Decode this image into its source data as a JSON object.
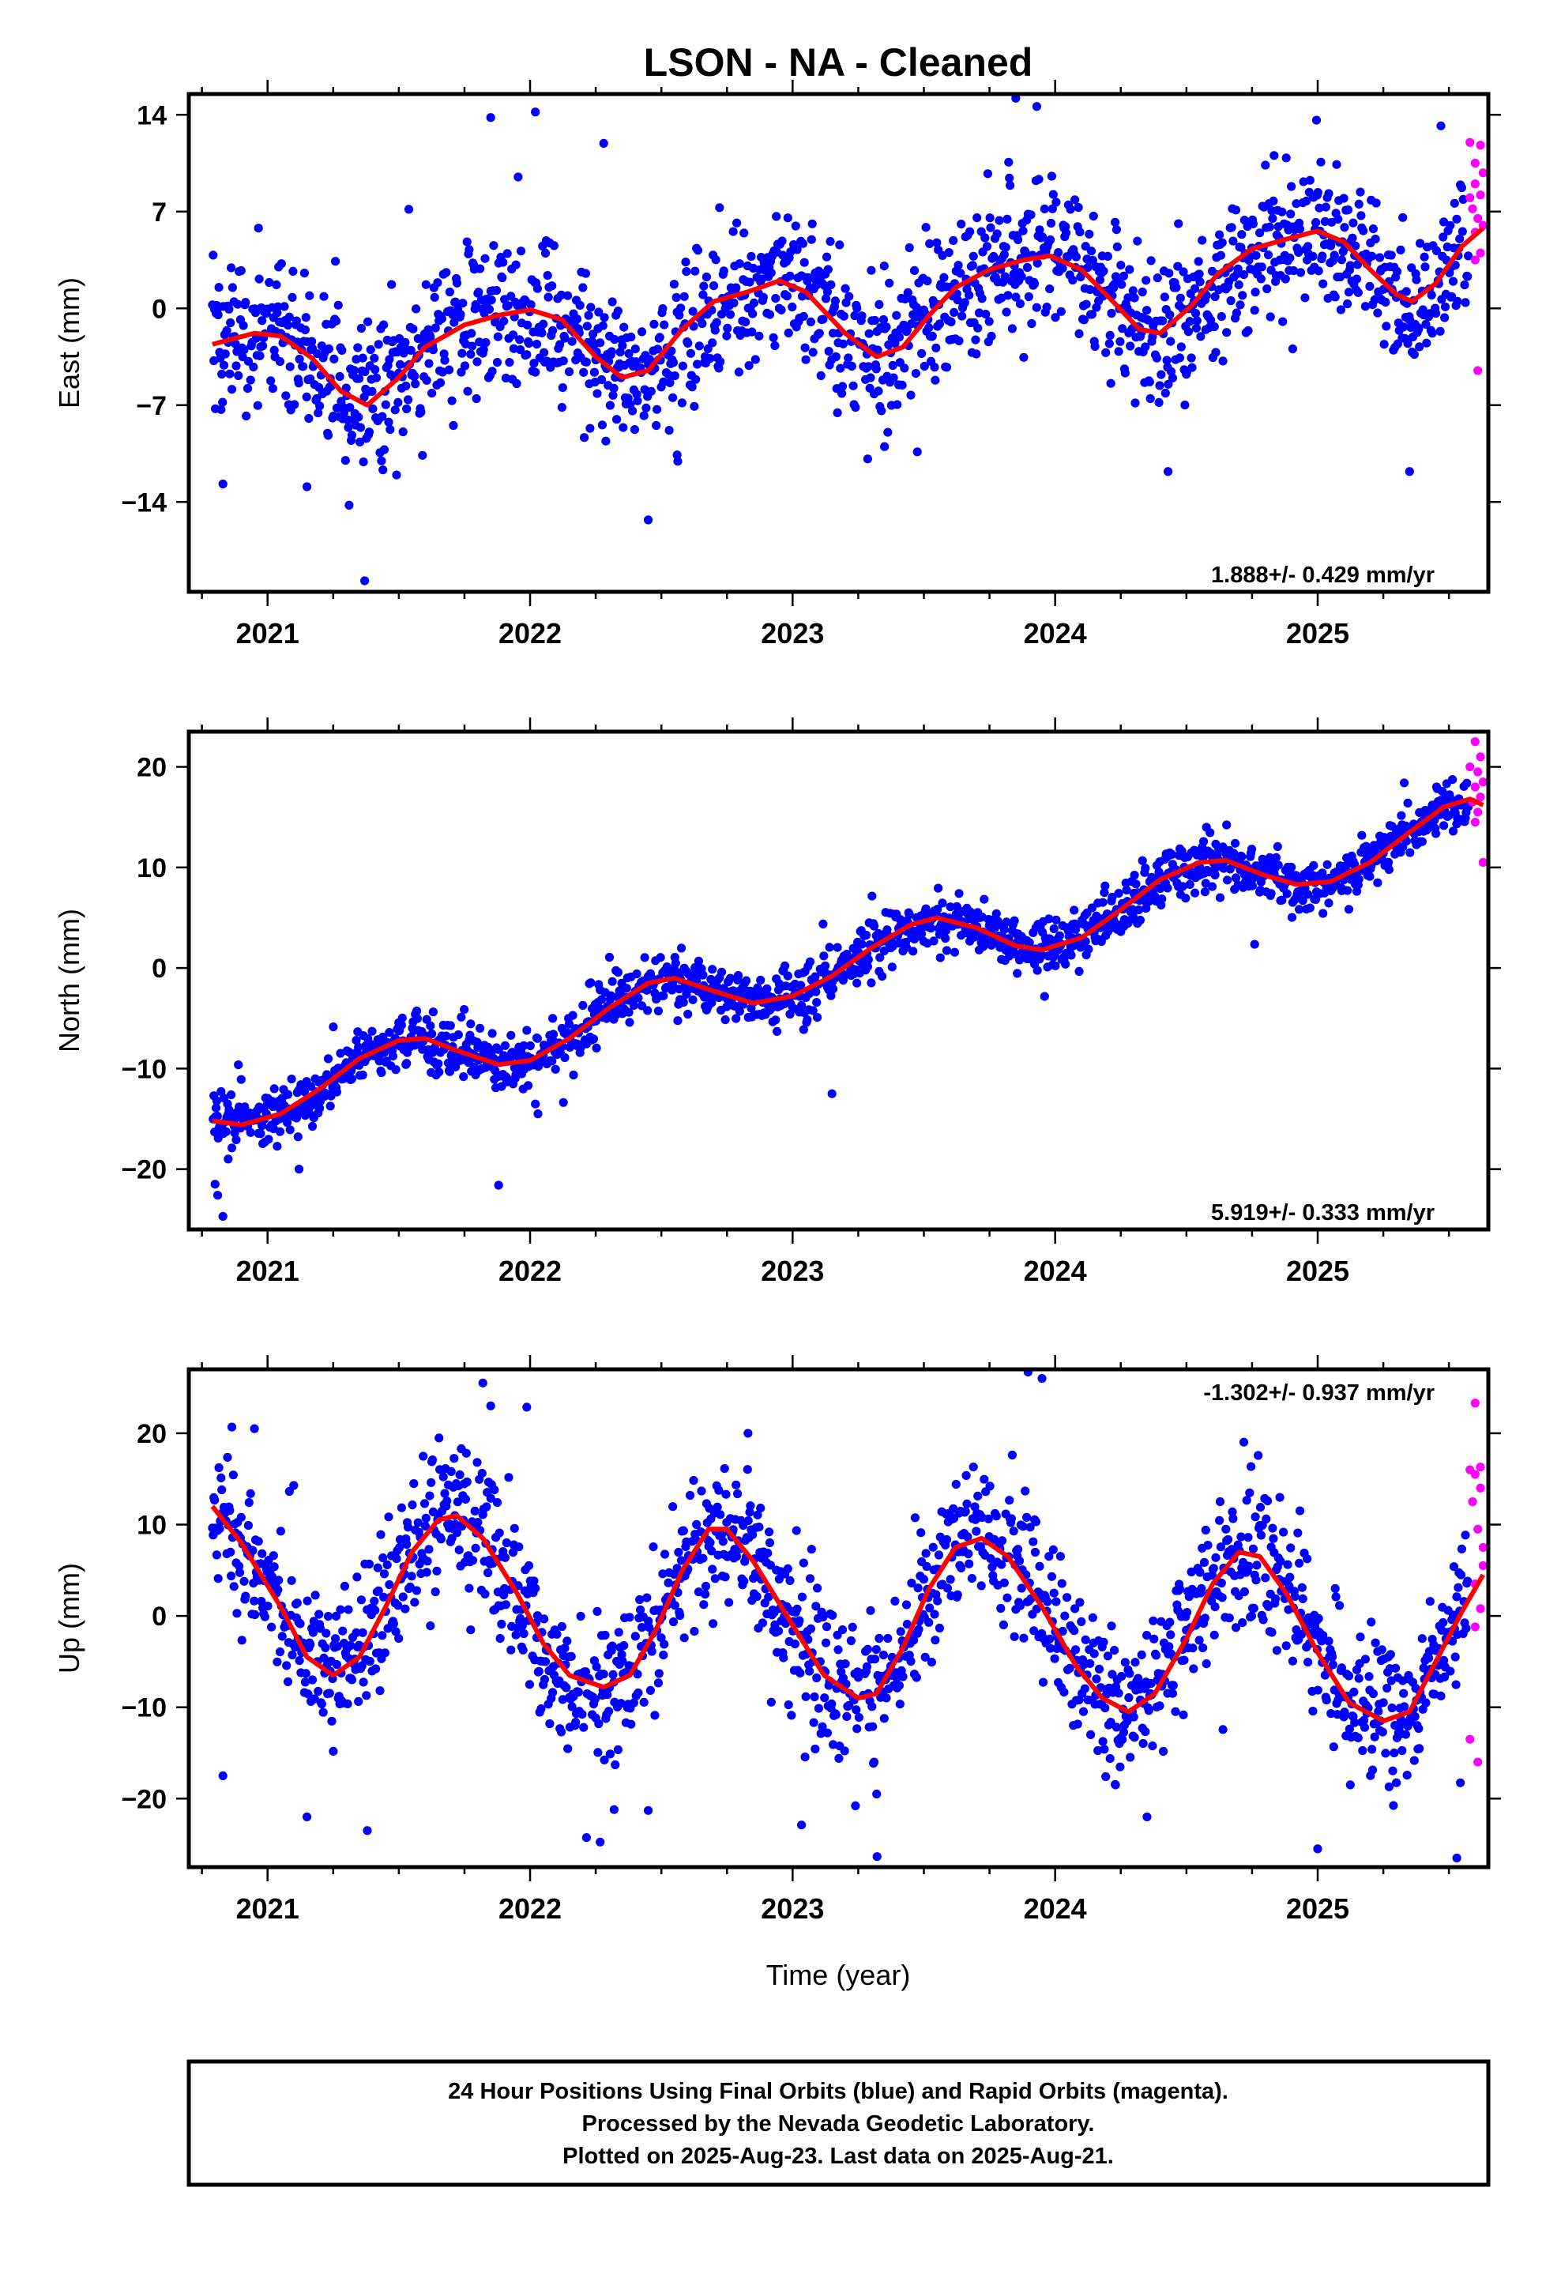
{
  "title": "LSON  - NA - Cleaned",
  "xlabel": "Time (year)",
  "footer": {
    "line1": "24 Hour Positions Using Final Orbits (blue) and Rapid Orbits (magenta).",
    "line2": "Processed by the Nevada Geodetic Laboratory.",
    "line3": "Plotted on 2025-Aug-23. Last data on 2025-Aug-21."
  },
  "colors": {
    "final": "#0000ff",
    "rapid": "#ff00ff",
    "fit": "#ff0000"
  },
  "chart_data": [
    {
      "type": "scatter",
      "ylabel": "East (mm)",
      "rate_label": "1.888+/- 0.429 mm/yr",
      "xlim": [
        2020.7,
        2025.65
      ],
      "ylim": [
        -20.5,
        15.5
      ],
      "yticks": [
        14,
        7,
        0,
        -7,
        -14
      ],
      "xticks": [
        2021,
        2022,
        2023,
        2024,
        2025
      ],
      "fit_points": [
        [
          2020.79,
          -2.6
        ],
        [
          2020.95,
          -1.8
        ],
        [
          2021.05,
          -2.0
        ],
        [
          2021.17,
          -3.6
        ],
        [
          2021.28,
          -6.0
        ],
        [
          2021.38,
          -7.0
        ],
        [
          2021.5,
          -5.0
        ],
        [
          2021.6,
          -2.8
        ],
        [
          2021.75,
          -1.2
        ],
        [
          2021.88,
          -0.5
        ],
        [
          2022.0,
          -0.1
        ],
        [
          2022.12,
          -0.8
        ],
        [
          2022.25,
          -3.5
        ],
        [
          2022.35,
          -5.0
        ],
        [
          2022.45,
          -4.5
        ],
        [
          2022.58,
          -1.5
        ],
        [
          2022.7,
          0.5
        ],
        [
          2022.83,
          1.2
        ],
        [
          2022.95,
          2.0
        ],
        [
          2023.05,
          1.2
        ],
        [
          2023.2,
          -1.8
        ],
        [
          2023.32,
          -3.5
        ],
        [
          2023.42,
          -2.8
        ],
        [
          2023.52,
          -0.5
        ],
        [
          2023.62,
          1.5
        ],
        [
          2023.75,
          2.8
        ],
        [
          2023.88,
          3.5
        ],
        [
          2023.98,
          3.8
        ],
        [
          2024.1,
          2.8
        ],
        [
          2024.22,
          0.5
        ],
        [
          2024.32,
          -1.5
        ],
        [
          2024.4,
          -1.8
        ],
        [
          2024.52,
          0.2
        ],
        [
          2024.62,
          2.5
        ],
        [
          2024.75,
          4.3
        ],
        [
          2024.88,
          5.0
        ],
        [
          2025.0,
          5.6
        ],
        [
          2025.1,
          4.8
        ],
        [
          2025.2,
          2.8
        ],
        [
          2025.3,
          1.0
        ],
        [
          2025.36,
          0.5
        ],
        [
          2025.45,
          1.8
        ],
        [
          2025.55,
          4.5
        ],
        [
          2025.63,
          5.8
        ]
      ],
      "noise": 2.6,
      "outliers": [
        [
          2021.37,
          -19.7
        ],
        [
          2022.45,
          -15.3
        ],
        [
          2021.85,
          13.8
        ],
        [
          2022.02,
          14.2
        ],
        [
          2023.93,
          14.6
        ],
        [
          2023.85,
          15.2
        ],
        [
          2025.35,
          -11.8
        ],
        [
          2020.83,
          -12.7
        ],
        [
          2021.15,
          -12.9
        ],
        [
          2022.56,
          -10.6
        ],
        [
          2023.35,
          -10.0
        ],
        [
          2024.43,
          -11.8
        ]
      ],
      "rapid": [
        [
          2025.58,
          12.0
        ],
        [
          2025.6,
          10.5
        ],
        [
          2025.62,
          11.8
        ],
        [
          2025.6,
          9.0
        ],
        [
          2025.62,
          8.2
        ],
        [
          2025.59,
          7.2
        ],
        [
          2025.61,
          6.5
        ],
        [
          2025.63,
          6.0
        ],
        [
          2025.6,
          5.5
        ],
        [
          2025.62,
          4.0
        ],
        [
          2025.6,
          3.5
        ],
        [
          2025.61,
          -4.5
        ],
        [
          2025.63,
          9.8
        ],
        [
          2025.58,
          8.0
        ]
      ]
    },
    {
      "type": "scatter",
      "ylabel": "North (mm)",
      "rate_label": "5.919+/- 0.333 mm/yr",
      "xlim": [
        2020.7,
        2025.65
      ],
      "ylim": [
        -26,
        23.5
      ],
      "yticks": [
        20,
        10,
        0,
        -10,
        -20
      ],
      "xticks": [
        2021,
        2022,
        2023,
        2024,
        2025
      ],
      "fit_points": [
        [
          2020.79,
          -15.2
        ],
        [
          2020.9,
          -15.6
        ],
        [
          2021.05,
          -14.5
        ],
        [
          2021.2,
          -12.0
        ],
        [
          2021.35,
          -9.0
        ],
        [
          2021.5,
          -7.2
        ],
        [
          2021.6,
          -7.0
        ],
        [
          2021.72,
          -8.2
        ],
        [
          2021.88,
          -9.6
        ],
        [
          2022.0,
          -9.2
        ],
        [
          2022.15,
          -7.0
        ],
        [
          2022.3,
          -4.0
        ],
        [
          2022.45,
          -1.5
        ],
        [
          2022.55,
          -1.0
        ],
        [
          2022.7,
          -2.3
        ],
        [
          2022.85,
          -3.5
        ],
        [
          2023.0,
          -2.8
        ],
        [
          2023.15,
          -0.8
        ],
        [
          2023.3,
          2.0
        ],
        [
          2023.45,
          4.3
        ],
        [
          2023.55,
          5.0
        ],
        [
          2023.7,
          4.0
        ],
        [
          2023.85,
          2.2
        ],
        [
          2023.95,
          1.8
        ],
        [
          2024.1,
          3.0
        ],
        [
          2024.25,
          5.8
        ],
        [
          2024.4,
          8.8
        ],
        [
          2024.55,
          10.5
        ],
        [
          2024.65,
          10.7
        ],
        [
          2024.8,
          9.2
        ],
        [
          2024.92,
          8.3
        ],
        [
          2025.05,
          8.6
        ],
        [
          2025.2,
          10.5
        ],
        [
          2025.35,
          13.5
        ],
        [
          2025.48,
          16.0
        ],
        [
          2025.58,
          16.8
        ],
        [
          2025.63,
          16.2
        ]
      ],
      "noise": 1.3,
      "outliers": [
        [
          2020.83,
          -24.7
        ],
        [
          2020.81,
          -22.6
        ],
        [
          2020.8,
          -21.5
        ],
        [
          2021.12,
          -20.0
        ],
        [
          2021.88,
          -21.6
        ],
        [
          2023.15,
          -12.5
        ],
        [
          2020.85,
          -19.0
        ],
        [
          2022.03,
          -14.5
        ]
      ],
      "rapid": [
        [
          2025.6,
          22.5
        ],
        [
          2025.62,
          21.0
        ],
        [
          2025.58,
          20.0
        ],
        [
          2025.61,
          19.5
        ],
        [
          2025.63,
          18.5
        ],
        [
          2025.6,
          18.0
        ],
        [
          2025.62,
          17.0
        ],
        [
          2025.59,
          16.5
        ],
        [
          2025.61,
          15.5
        ],
        [
          2025.63,
          10.5
        ],
        [
          2025.6,
          14.5
        ]
      ]
    },
    {
      "type": "scatter",
      "ylabel": "Up (mm)",
      "rate_label": "-1.302+/- 0.937 mm/yr",
      "xlim": [
        2020.7,
        2025.65
      ],
      "ylim": [
        -27.5,
        27
      ],
      "yticks": [
        20,
        10,
        0,
        -10,
        -20
      ],
      "xticks": [
        2021,
        2022,
        2023,
        2024,
        2025
      ],
      "fit_points": [
        [
          2020.79,
          12.0
        ],
        [
          2020.9,
          8.0
        ],
        [
          2021.05,
          1.0
        ],
        [
          2021.15,
          -4.5
        ],
        [
          2021.25,
          -6.5
        ],
        [
          2021.35,
          -4.5
        ],
        [
          2021.45,
          1.0
        ],
        [
          2021.55,
          7.0
        ],
        [
          2021.65,
          10.5
        ],
        [
          2021.72,
          11.0
        ],
        [
          2021.82,
          8.5
        ],
        [
          2021.95,
          2.5
        ],
        [
          2022.05,
          -3.0
        ],
        [
          2022.15,
          -6.5
        ],
        [
          2022.28,
          -7.8
        ],
        [
          2022.38,
          -6.5
        ],
        [
          2022.48,
          -1.5
        ],
        [
          2022.58,
          5.0
        ],
        [
          2022.68,
          9.5
        ],
        [
          2022.75,
          9.5
        ],
        [
          2022.85,
          6.0
        ],
        [
          2023.0,
          -1.0
        ],
        [
          2023.12,
          -6.5
        ],
        [
          2023.25,
          -9.0
        ],
        [
          2023.32,
          -8.5
        ],
        [
          2023.42,
          -3.5
        ],
        [
          2023.52,
          3.0
        ],
        [
          2023.62,
          7.5
        ],
        [
          2023.72,
          8.5
        ],
        [
          2023.82,
          6.5
        ],
        [
          2023.95,
          1.0
        ],
        [
          2024.08,
          -5.5
        ],
        [
          2024.18,
          -9.0
        ],
        [
          2024.28,
          -10.5
        ],
        [
          2024.38,
          -8.5
        ],
        [
          2024.5,
          -2.5
        ],
        [
          2024.6,
          3.5
        ],
        [
          2024.7,
          7.0
        ],
        [
          2024.78,
          6.5
        ],
        [
          2024.88,
          2.5
        ],
        [
          2025.0,
          -4.0
        ],
        [
          2025.12,
          -9.5
        ],
        [
          2025.25,
          -11.5
        ],
        [
          2025.35,
          -10.5
        ],
        [
          2025.45,
          -5.0
        ],
        [
          2025.55,
          0.5
        ],
        [
          2025.63,
          4.5
        ]
      ],
      "noise": 4.0,
      "outliers": [
        [
          2020.83,
          -17.5
        ],
        [
          2021.15,
          -22.0
        ],
        [
          2021.38,
          -23.5
        ],
        [
          2022.32,
          -21.2
        ],
        [
          2022.45,
          -21.3
        ],
        [
          2023.32,
          -19.5
        ],
        [
          2024.23,
          -18.5
        ],
        [
          2024.35,
          -22.0
        ],
        [
          2025.0,
          -25.5
        ],
        [
          2025.53,
          -26.5
        ],
        [
          2023.95,
          26.0
        ],
        [
          2021.82,
          25.5
        ],
        [
          2021.85,
          23.0
        ],
        [
          2020.95,
          20.5
        ],
        [
          2022.83,
          20.0
        ]
      ],
      "rapid": [
        [
          2025.6,
          23.3
        ],
        [
          2025.62,
          16.3
        ],
        [
          2025.58,
          16.0
        ],
        [
          2025.6,
          15.5
        ],
        [
          2025.62,
          14.0
        ],
        [
          2025.59,
          12.5
        ],
        [
          2025.61,
          9.5
        ],
        [
          2025.63,
          5.5
        ],
        [
          2025.6,
          3.5
        ],
        [
          2025.62,
          0.8
        ],
        [
          2025.6,
          -1.2
        ],
        [
          2025.58,
          -13.5
        ],
        [
          2025.61,
          -16.0
        ],
        [
          2025.63,
          7.5
        ]
      ]
    }
  ]
}
